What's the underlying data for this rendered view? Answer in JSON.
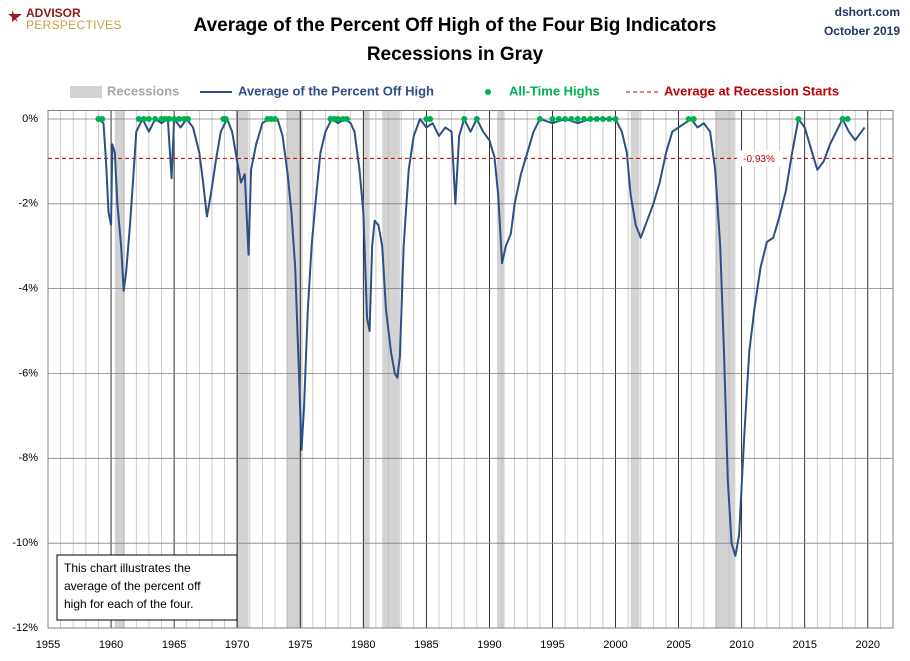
{
  "chart_data": {
    "type": "line",
    "title": "Average of the Percent Off High of the Four Big Indicators",
    "subtitle": "Recessions in Gray",
    "logo": {
      "line1": "ADVISOR",
      "line2": "PERSPECTIVES"
    },
    "source": "dshort.com",
    "date": "October 2019",
    "annotation": [
      "This chart illustrates the",
      "average of the percent off",
      "high for each of the four."
    ],
    "xlim": [
      1955,
      2022
    ],
    "xticks": [
      1955,
      1960,
      1965,
      1970,
      1975,
      1980,
      1985,
      1990,
      1995,
      2000,
      2005,
      2010,
      2015,
      2020
    ],
    "xminorticks": [
      1956,
      1957,
      1958,
      1959,
      1961,
      1962,
      1963,
      1964,
      1966,
      1967,
      1968,
      1969,
      1971,
      1972,
      1973,
      1974,
      1976,
      1977,
      1978,
      1979,
      1981,
      1982,
      1983,
      1984,
      1986,
      1987,
      1988,
      1989,
      1991,
      1992,
      1993,
      1994,
      1996,
      1997,
      1998,
      1999,
      2001,
      2002,
      2003,
      2004,
      2006,
      2007,
      2008,
      2009,
      2011,
      2012,
      2013,
      2014,
      2016,
      2017,
      2018,
      2019,
      2021
    ],
    "ylim": [
      -12,
      0.2
    ],
    "yticks": [
      {
        "value": 0,
        "label": "0%"
      },
      {
        "value": -2,
        "label": "-2%"
      },
      {
        "value": -4,
        "label": "-4%"
      },
      {
        "value": -6,
        "label": "-6%"
      },
      {
        "value": -8,
        "label": "-8%"
      },
      {
        "value": -10,
        "label": "-10%"
      },
      {
        "value": -12,
        "label": "-12%"
      }
    ],
    "grid": true,
    "recessions": {
      "name": "Recessions",
      "color": "#d3d3d3",
      "ranges": [
        [
          1960.3,
          1961.1
        ],
        [
          1969.9,
          1970.9
        ],
        [
          1973.9,
          1975.2
        ],
        [
          1980.0,
          1980.5
        ],
        [
          1981.5,
          1982.9
        ],
        [
          1990.6,
          1991.2
        ],
        [
          2001.2,
          2001.9
        ],
        [
          2007.9,
          2009.5
        ]
      ]
    },
    "series": [
      {
        "name": "Average of the Percent Off High",
        "color": "#2e4f86",
        "x": [
          1959.0,
          1959.4,
          1959.6,
          1959.8,
          1960.0,
          1960.1,
          1960.3,
          1960.5,
          1960.8,
          1961.0,
          1961.2,
          1961.5,
          1961.8,
          1962.0,
          1962.5,
          1963.0,
          1963.5,
          1964.0,
          1964.5,
          1964.8,
          1965.0,
          1965.5,
          1966.0,
          1966.5,
          1967.0,
          1967.3,
          1967.6,
          1967.9,
          1968.3,
          1968.7,
          1969.2,
          1969.6,
          1970.0,
          1970.3,
          1970.6,
          1970.9,
          1971.1,
          1971.5,
          1972.0,
          1972.5,
          1973.2,
          1973.6,
          1974.0,
          1974.3,
          1974.6,
          1974.9,
          1975.1,
          1975.3,
          1975.6,
          1975.9,
          1976.2,
          1976.6,
          1977.0,
          1977.5,
          1978.0,
          1978.5,
          1979.0,
          1979.3,
          1979.7,
          1980.0,
          1980.3,
          1980.5,
          1980.7,
          1980.9,
          1981.2,
          1981.5,
          1981.8,
          1982.2,
          1982.5,
          1982.7,
          1982.9,
          1983.2,
          1983.6,
          1984.0,
          1984.5,
          1985.0,
          1985.5,
          1986.0,
          1986.5,
          1987.0,
          1987.3,
          1987.6,
          1988.0,
          1988.5,
          1989.0,
          1989.5,
          1990.0,
          1990.4,
          1990.7,
          1991.0,
          1991.3,
          1991.7,
          1992.0,
          1992.5,
          1993.0,
          1993.5,
          1994.0,
          1995.0,
          1996.0,
          1997.0,
          1998.0,
          1999.0,
          2000.0,
          2000.5,
          2000.9,
          2001.2,
          2001.6,
          2002.0,
          2002.5,
          2003.0,
          2003.5,
          2004.0,
          2004.5,
          2005.0,
          2005.5,
          2006.0,
          2006.5,
          2007.0,
          2007.5,
          2007.9,
          2008.3,
          2008.6,
          2008.9,
          2009.2,
          2009.5,
          2009.8,
          2010.2,
          2010.6,
          2011.0,
          2011.5,
          2012.0,
          2012.5,
          2013.0,
          2013.5,
          2014.0,
          2014.5,
          2015.0,
          2015.5,
          2016.0,
          2016.5,
          2017.0,
          2017.5,
          2018.0,
          2018.5,
          2019.0,
          2019.5,
          2019.75
        ],
        "values": [
          0,
          -0.1,
          -1.0,
          -2.2,
          -2.5,
          -0.6,
          -0.8,
          -2.0,
          -3.0,
          -4.05,
          -3.6,
          -2.5,
          -1.2,
          -0.3,
          0,
          -0.3,
          0,
          -0.1,
          0,
          -1.4,
          0,
          -0.2,
          0,
          -0.2,
          -0.8,
          -1.5,
          -2.3,
          -1.8,
          -1.0,
          -0.3,
          0,
          -0.3,
          -1.0,
          -1.5,
          -1.3,
          -3.2,
          -1.2,
          -0.6,
          -0.1,
          0,
          0,
          -0.4,
          -1.3,
          -2.2,
          -3.5,
          -6.0,
          -7.8,
          -6.8,
          -4.5,
          -3.0,
          -2.0,
          -0.8,
          -0.3,
          0,
          -0.1,
          0,
          -0.1,
          -0.3,
          -1.2,
          -2.2,
          -4.7,
          -5.0,
          -3.0,
          -2.4,
          -2.5,
          -3.0,
          -4.5,
          -5.5,
          -6.0,
          -6.1,
          -5.6,
          -3.0,
          -1.2,
          -0.4,
          0,
          -0.2,
          -0.1,
          -0.4,
          -0.2,
          -0.3,
          -2.0,
          -0.4,
          0,
          -0.3,
          0,
          -0.3,
          -0.5,
          -0.9,
          -1.8,
          -3.4,
          -3.0,
          -2.7,
          -2.0,
          -1.3,
          -0.8,
          -0.3,
          0,
          -0.1,
          0,
          -0.1,
          0,
          0,
          0,
          -0.3,
          -0.8,
          -1.8,
          -2.5,
          -2.8,
          -2.4,
          -2.0,
          -1.5,
          -0.8,
          -0.3,
          -0.2,
          -0.1,
          0,
          -0.2,
          -0.1,
          -0.3,
          -1.2,
          -3.0,
          -5.5,
          -8.5,
          -10.0,
          -10.3,
          -9.8,
          -7.5,
          -5.5,
          -4.5,
          -3.5,
          -2.9,
          -2.8,
          -2.3,
          -1.7,
          -0.8,
          0,
          -0.2,
          -0.7,
          -1.2,
          -1.0,
          -0.6,
          -0.3,
          0,
          -0.3,
          -0.5,
          -0.3,
          -0.2
        ]
      },
      {
        "name": "All-Time Highs",
        "color": "#00b050",
        "type": "scatter",
        "x": [
          1959.0,
          1959.3,
          1962.2,
          1962.6,
          1963.0,
          1963.5,
          1964.0,
          1964.3,
          1964.6,
          1965.0,
          1965.4,
          1965.8,
          1966.1,
          1968.9,
          1969.1,
          1972.4,
          1972.7,
          1973.0,
          1977.4,
          1977.7,
          1978.0,
          1978.4,
          1978.7,
          1985.0,
          1985.3,
          1988.0,
          1989.0,
          1994.0,
          1995.0,
          1995.5,
          1996.0,
          1996.5,
          1997.0,
          1997.5,
          1998.0,
          1998.5,
          1999.0,
          1999.5,
          2000.0,
          2005.8,
          2006.2,
          2014.5,
          2018.0,
          2018.4
        ],
        "values": [
          0,
          0,
          0,
          0,
          0,
          0,
          0,
          0,
          0,
          0,
          0,
          0,
          0,
          0,
          0,
          0,
          0,
          0,
          0,
          0,
          0,
          0,
          0,
          0,
          0,
          0,
          0,
          0,
          0,
          0,
          0,
          0,
          0,
          0,
          0,
          0,
          0,
          0,
          0,
          0,
          0,
          0,
          0,
          0
        ]
      }
    ],
    "average": {
      "name": "Average at Recession Starts",
      "color": "#c00000",
      "value": -0.93,
      "value_label": "-0.93%"
    }
  }
}
